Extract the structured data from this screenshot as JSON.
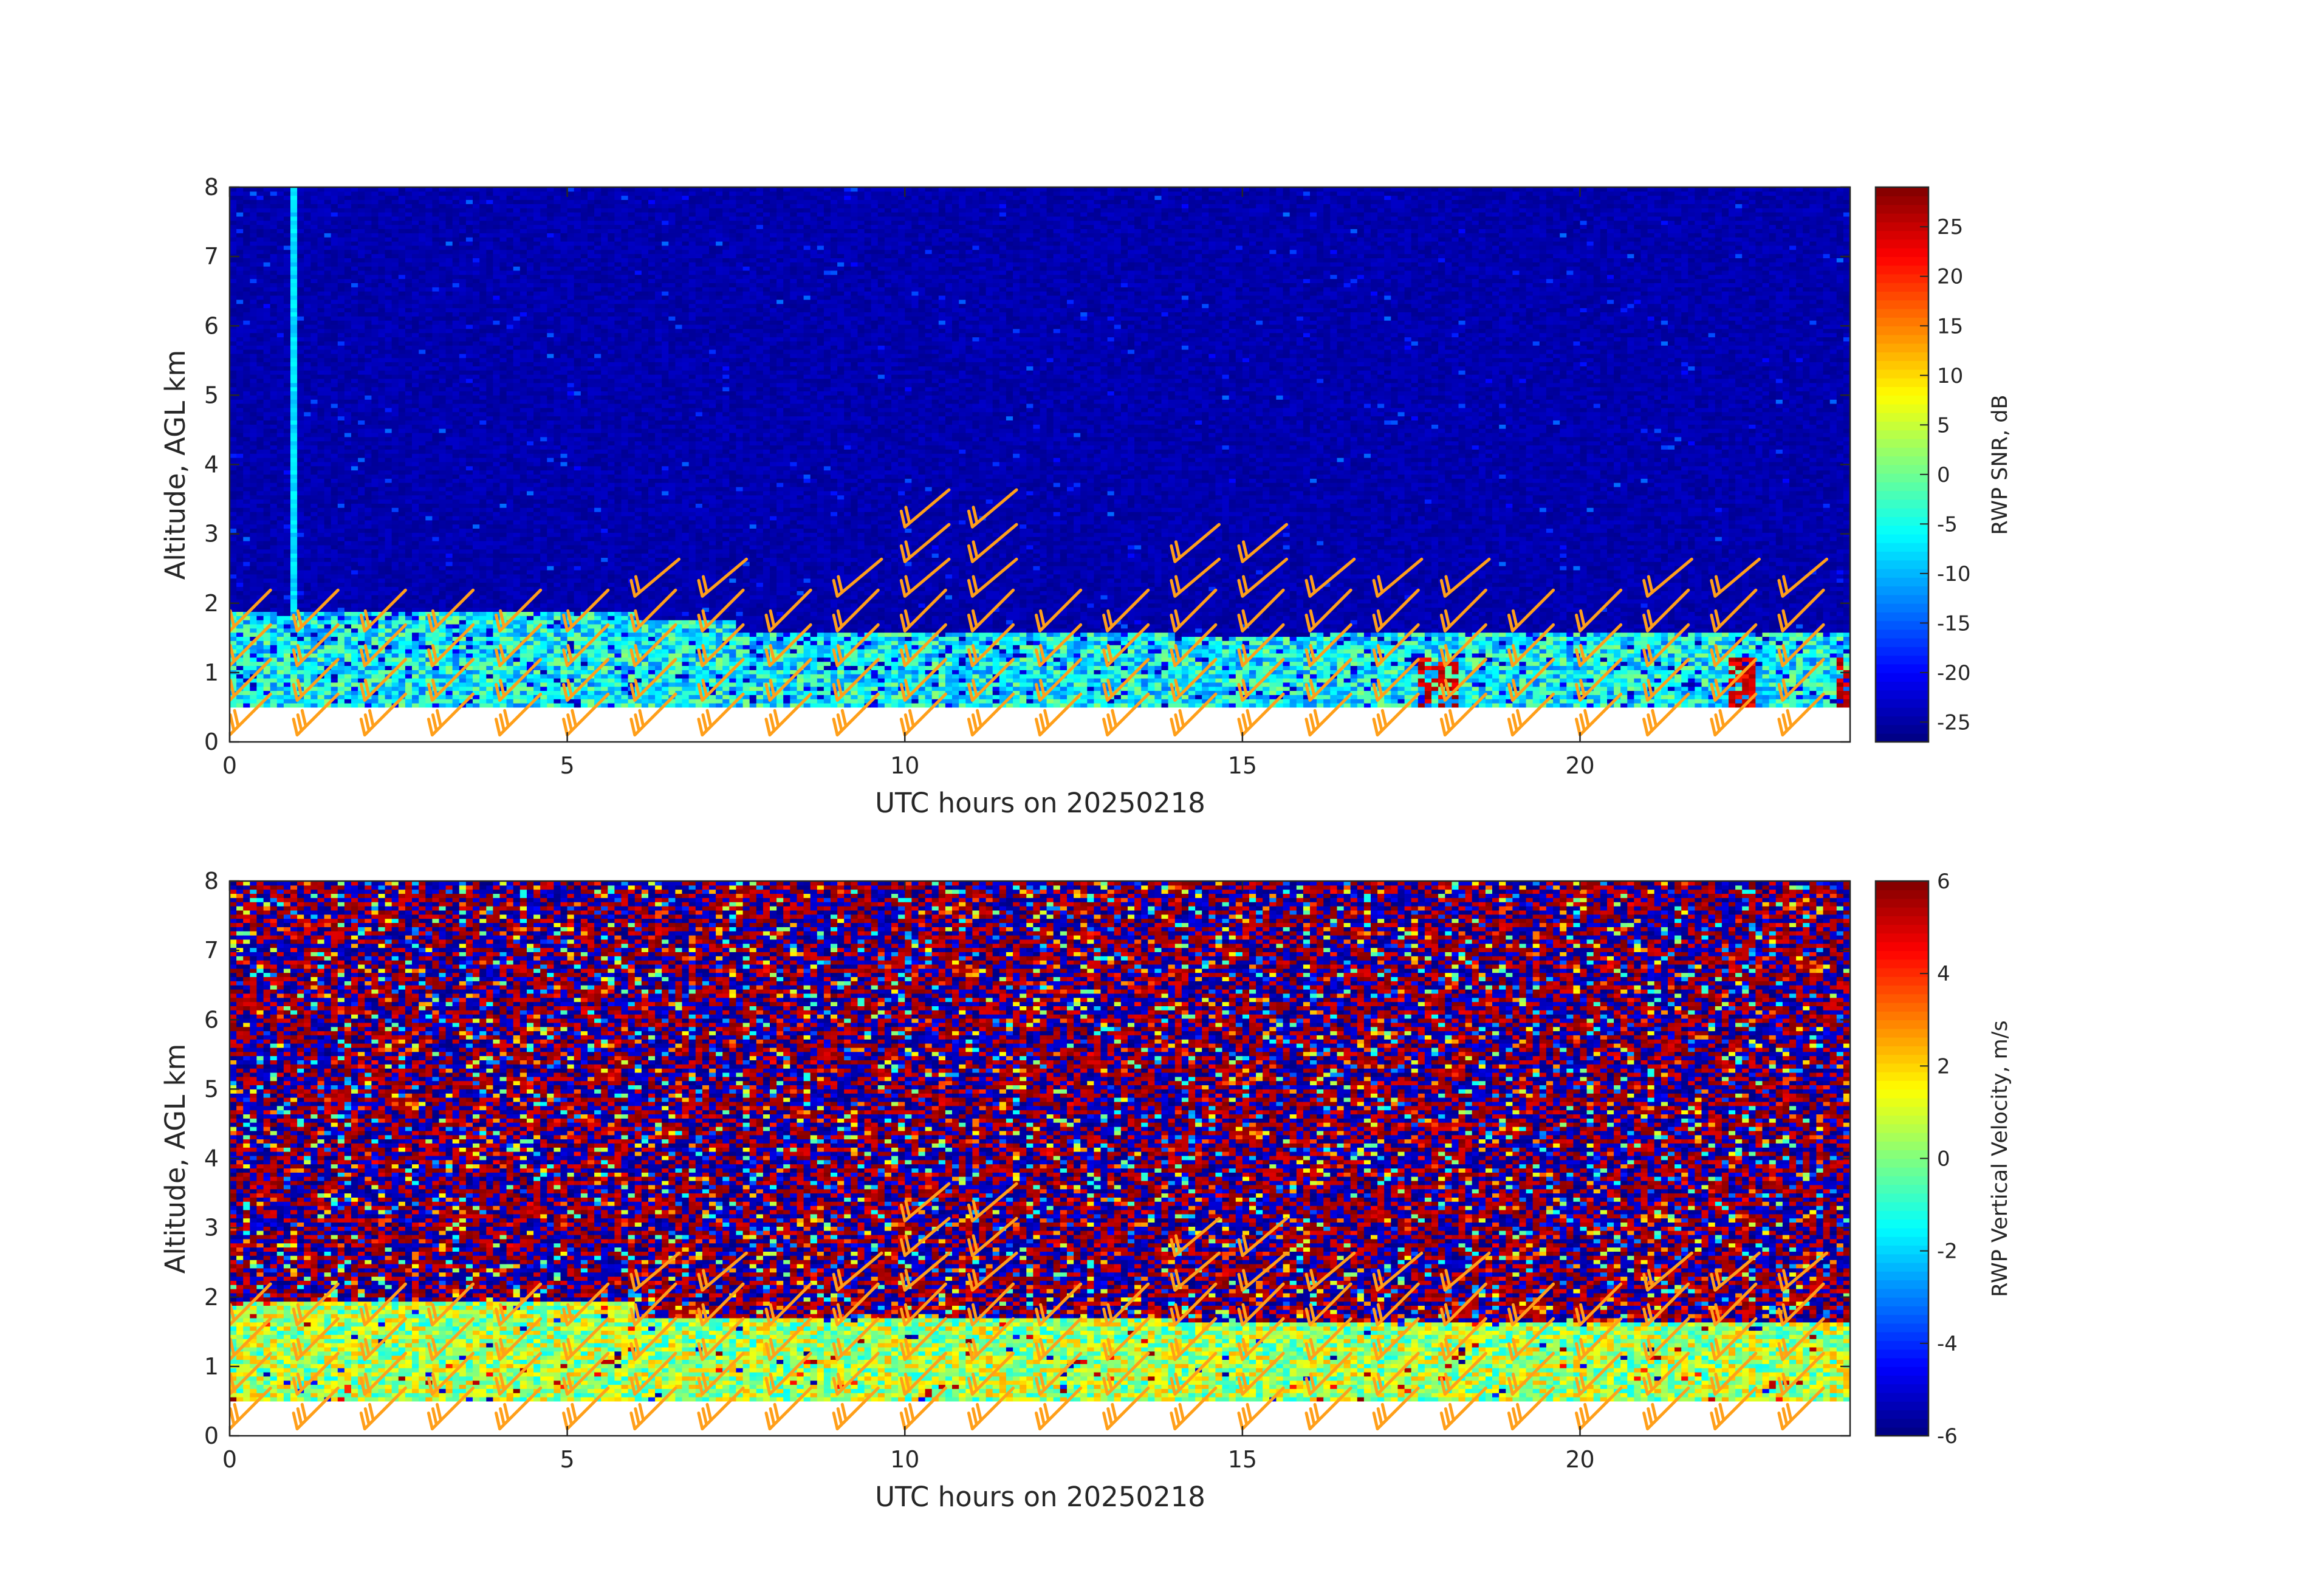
{
  "chart_data": [
    {
      "type": "heatmap",
      "title": "",
      "xlabel": "UTC hours on 20250218",
      "ylabel": "Altitude, AGL km",
      "xlim": [
        0,
        24
      ],
      "ylim": [
        0,
        8
      ],
      "xticks": [
        0,
        5,
        10,
        15,
        20
      ],
      "yticks": [
        0,
        1,
        2,
        3,
        4,
        5,
        6,
        7,
        8
      ],
      "grid": false,
      "colormap": "jet",
      "colorbar": {
        "label": "RWP SNR, dB",
        "limits": [
          -27,
          29
        ],
        "ticks": [
          -25,
          -20,
          -15,
          -10,
          -5,
          0,
          5,
          10,
          15,
          20,
          25
        ]
      },
      "data_gate_bottom_km": 0.5,
      "background_snr_db": -26,
      "boundary_layer_top_km": [
        {
          "from_hour": 0,
          "to_hour": 6,
          "km": 1.85
        },
        {
          "from_hour": 6,
          "to_hour": 7.5,
          "km": 1.75
        },
        {
          "from_hour": 7.5,
          "to_hour": 14,
          "km": 1.6
        },
        {
          "from_hour": 14,
          "to_hour": 16,
          "km": 1.55
        },
        {
          "from_hour": 16,
          "to_hour": 24,
          "km": 1.6
        }
      ],
      "boundary_layer_snr_db": [
        -14,
        2
      ],
      "profile_gaps_hours": [
        2,
        3,
        5,
        6,
        7,
        8,
        10,
        11,
        14,
        15,
        16,
        18,
        19,
        20,
        22,
        23
      ],
      "vertical_streak_hour": 0.95,
      "wind_barbs": {
        "color": "#ff9f1a",
        "hours": [
          0,
          1,
          2,
          3,
          4,
          5,
          6,
          7,
          8,
          9,
          10,
          11,
          12,
          13,
          14,
          15,
          16,
          17,
          18,
          19,
          20,
          21,
          22,
          23
        ],
        "levels_km": [
          0.1,
          0.6,
          1.1,
          1.6,
          2.1,
          2.6,
          3.1
        ],
        "max_level_km_by_hour": [
          1.6,
          1.6,
          1.6,
          1.6,
          1.6,
          1.6,
          2.1,
          2.1,
          1.6,
          2.1,
          3.1,
          3.1,
          1.6,
          1.6,
          2.6,
          2.6,
          2.1,
          2.1,
          2.1,
          1.6,
          1.6,
          2.1,
          2.1,
          2.1
        ]
      }
    },
    {
      "type": "heatmap",
      "title": "",
      "xlabel": "UTC hours on 20250218",
      "ylabel": "Altitude, AGL km",
      "xlim": [
        0,
        24
      ],
      "ylim": [
        0,
        8
      ],
      "xticks": [
        0,
        5,
        10,
        15,
        20
      ],
      "yticks": [
        0,
        1,
        2,
        3,
        4,
        5,
        6,
        7,
        8
      ],
      "grid": false,
      "colormap": "jet",
      "colorbar": {
        "label": "RWP Vertical Velocity, m/s",
        "limits": [
          -6,
          6
        ],
        "ticks": [
          -6,
          -4,
          -2,
          0,
          2,
          4,
          6
        ]
      },
      "data_gate_bottom_km": 0.5,
      "noise_range_m_s": [
        -6,
        6
      ],
      "boundary_layer_top_km": [
        {
          "from_hour": 0,
          "to_hour": 6,
          "km": 1.95
        },
        {
          "from_hour": 6,
          "to_hour": 14,
          "km": 1.7
        },
        {
          "from_hour": 14,
          "to_hour": 24,
          "km": 1.65
        }
      ],
      "boundary_layer_velocity_m_s": [
        -1.5,
        2.5
      ],
      "profile_gaps_hours": [
        1,
        2,
        3,
        5,
        6,
        7,
        8,
        10,
        11,
        14,
        15,
        16,
        18,
        19,
        20,
        22,
        23
      ],
      "wind_barbs": {
        "color": "#ff9f1a",
        "hours": [
          0,
          1,
          2,
          3,
          4,
          5,
          6,
          7,
          8,
          9,
          10,
          11,
          12,
          13,
          14,
          15,
          16,
          17,
          18,
          19,
          20,
          21,
          22,
          23
        ],
        "levels_km": [
          0.1,
          0.6,
          1.1,
          1.6,
          2.1,
          2.6,
          3.1
        ],
        "max_level_km_by_hour": [
          1.6,
          1.6,
          1.6,
          1.6,
          1.6,
          1.6,
          2.1,
          2.1,
          1.6,
          2.1,
          3.1,
          3.1,
          1.6,
          1.6,
          2.6,
          2.6,
          2.1,
          2.1,
          2.1,
          1.6,
          1.6,
          2.1,
          2.1,
          2.1
        ]
      }
    }
  ]
}
